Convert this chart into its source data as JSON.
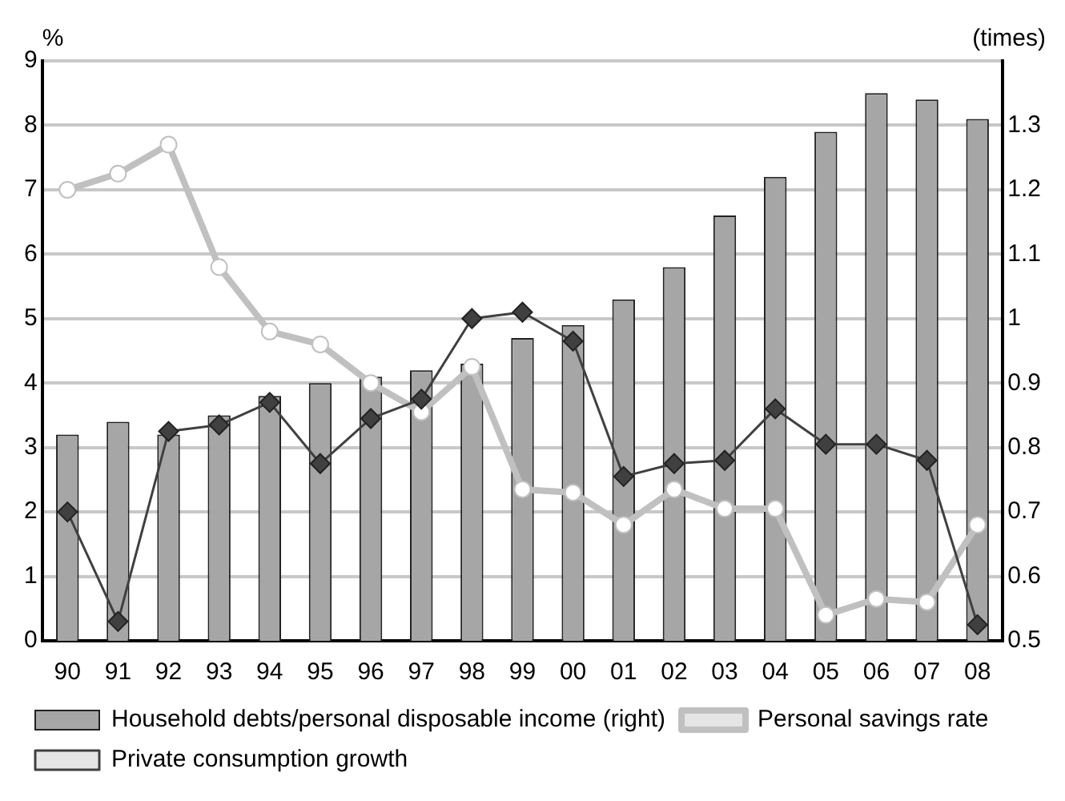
{
  "chart_data": {
    "type": "bar",
    "ylabel": "%",
    "y2label": "(times)",
    "categories": [
      "90",
      "91",
      "92",
      "93",
      "94",
      "95",
      "96",
      "97",
      "98",
      "99",
      "00",
      "01",
      "02",
      "03",
      "04",
      "05",
      "06",
      "07",
      "08"
    ],
    "series": [
      {
        "name": "Household debts/personal disposable income (right)",
        "axis": "y2",
        "color": "#a6a6a6",
        "values": [
          0.82,
          0.84,
          0.82,
          0.85,
          0.88,
          0.9,
          0.91,
          0.92,
          0.93,
          0.97,
          0.99,
          1.03,
          1.08,
          1.16,
          1.22,
          1.29,
          1.35,
          1.34,
          1.31
        ]
      },
      {
        "name": "Personal savings rate",
        "type": "line",
        "color": "#c0c0c0",
        "marker": "circle",
        "values": [
          7.0,
          7.25,
          7.7,
          5.8,
          4.8,
          4.6,
          4.0,
          3.55,
          4.25,
          2.35,
          2.3,
          1.8,
          2.35,
          2.05,
          2.05,
          0.4,
          0.65,
          0.6,
          1.8
        ]
      },
      {
        "name": "Private consumption growth",
        "type": "line",
        "color": "#404040",
        "marker": "diamond",
        "values": [
          2.0,
          0.3,
          3.25,
          3.35,
          3.7,
          2.75,
          3.45,
          3.75,
          5.0,
          5.1,
          4.65,
          2.55,
          2.75,
          2.8,
          3.6,
          3.05,
          3.05,
          2.8,
          0.25
        ]
      }
    ],
    "ylim": [
      0,
      9
    ],
    "yticks": [
      0,
      1,
      2,
      3,
      4,
      5,
      6,
      7,
      8,
      9
    ],
    "y2lim": [
      0.5,
      1.4
    ],
    "y2ticks": [
      0.5,
      0.6,
      0.7,
      0.8,
      0.9,
      1.0,
      1.1,
      1.2,
      1.3
    ],
    "grid": "y",
    "legend": "bottom"
  }
}
